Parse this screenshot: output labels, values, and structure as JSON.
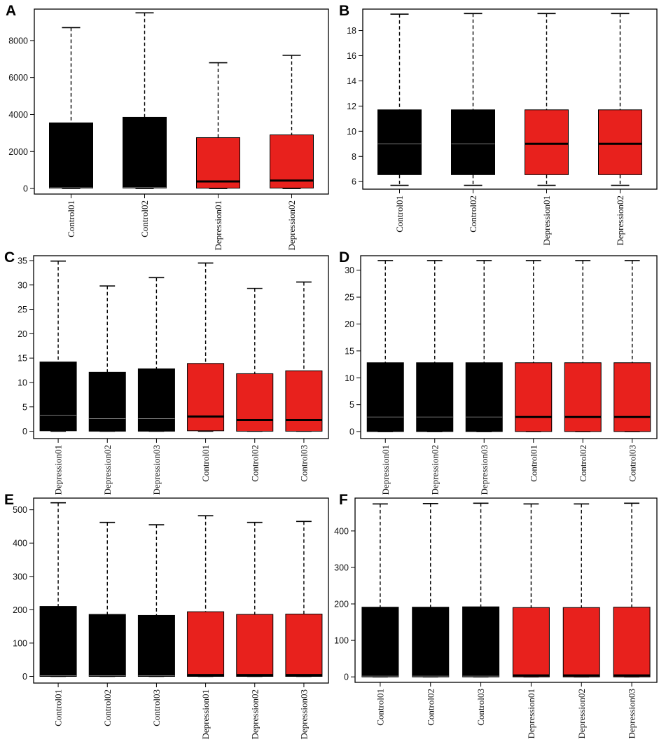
{
  "colors": {
    "control": "#000000",
    "depression": "#e8211d",
    "axis": "#000000",
    "median_on_black": "#777777"
  },
  "chart_data": [
    {
      "panel": "A",
      "type": "box",
      "ylim": [
        -300,
        9700
      ],
      "yticks": [
        0,
        2000,
        4000,
        6000,
        8000
      ],
      "categories": [
        "Control01",
        "Control02",
        "Depression01",
        "Depression02"
      ],
      "boxes": [
        {
          "label": "Control01",
          "group": "control",
          "min": 0,
          "q1": 20,
          "median": 40,
          "q3": 3550,
          "max": 8700
        },
        {
          "label": "Control02",
          "group": "control",
          "min": 0,
          "q1": 25,
          "median": 50,
          "q3": 3850,
          "max": 9500
        },
        {
          "label": "Depression01",
          "group": "depression",
          "min": 0,
          "q1": 20,
          "median": 380,
          "q3": 2750,
          "max": 6800
        },
        {
          "label": "Depression02",
          "group": "depression",
          "min": 0,
          "q1": 25,
          "median": 430,
          "q3": 2900,
          "max": 7200
        }
      ]
    },
    {
      "panel": "B",
      "type": "box",
      "ylim": [
        5.4,
        19.7
      ],
      "yticks": [
        6,
        8,
        10,
        12,
        14,
        16,
        18
      ],
      "categories": [
        "Control01",
        "Control02",
        "Depression01",
        "Depression02"
      ],
      "boxes": [
        {
          "label": "Control01",
          "group": "control",
          "min": 5.7,
          "q1": 6.55,
          "median": 9.0,
          "q3": 11.7,
          "max": 19.3
        },
        {
          "label": "Control02",
          "group": "control",
          "min": 5.7,
          "q1": 6.55,
          "median": 9.0,
          "q3": 11.7,
          "max": 19.35
        },
        {
          "label": "Depression01",
          "group": "depression",
          "min": 5.7,
          "q1": 6.55,
          "median": 9.0,
          "q3": 11.7,
          "max": 19.35
        },
        {
          "label": "Depression02",
          "group": "depression",
          "min": 5.7,
          "q1": 6.55,
          "median": 9.0,
          "q3": 11.7,
          "max": 19.35
        }
      ]
    },
    {
      "panel": "C",
      "type": "box",
      "ylim": [
        -1.5,
        36
      ],
      "yticks": [
        0,
        5,
        10,
        15,
        20,
        25,
        30,
        35
      ],
      "categories": [
        "Depression01",
        "Depression02",
        "Depression03",
        "Control01",
        "Control02",
        "Control03"
      ],
      "boxes": [
        {
          "label": "Depression01",
          "group": "control",
          "min": 0,
          "q1": 0.1,
          "median": 3.2,
          "q3": 14.2,
          "max": 34.9
        },
        {
          "label": "Depression02",
          "group": "control",
          "min": 0,
          "q1": 0,
          "median": 2.6,
          "q3": 12.1,
          "max": 29.8
        },
        {
          "label": "Depression03",
          "group": "control",
          "min": 0,
          "q1": 0,
          "median": 2.6,
          "q3": 12.8,
          "max": 31.5
        },
        {
          "label": "Control01",
          "group": "depression",
          "min": 0,
          "q1": 0.1,
          "median": 3.0,
          "q3": 13.9,
          "max": 34.5
        },
        {
          "label": "Control02",
          "group": "depression",
          "min": 0,
          "q1": 0,
          "median": 2.3,
          "q3": 11.8,
          "max": 29.3
        },
        {
          "label": "Control03",
          "group": "depression",
          "min": 0,
          "q1": 0,
          "median": 2.3,
          "q3": 12.4,
          "max": 30.6
        }
      ]
    },
    {
      "panel": "D",
      "type": "box",
      "ylim": [
        -1.3,
        32.7
      ],
      "yticks": [
        0,
        5,
        10,
        15,
        20,
        25,
        30
      ],
      "categories": [
        "Depression01",
        "Depression02",
        "Depression03",
        "Control01",
        "Control02",
        "Control03"
      ],
      "boxes": [
        {
          "label": "Depression01",
          "group": "control",
          "min": 0,
          "q1": 0,
          "median": 2.7,
          "q3": 12.8,
          "max": 31.8
        },
        {
          "label": "Depression02",
          "group": "control",
          "min": 0,
          "q1": 0,
          "median": 2.7,
          "q3": 12.8,
          "max": 31.8
        },
        {
          "label": "Depression03",
          "group": "control",
          "min": 0,
          "q1": 0,
          "median": 2.7,
          "q3": 12.8,
          "max": 31.8
        },
        {
          "label": "Control01",
          "group": "depression",
          "min": 0,
          "q1": 0,
          "median": 2.7,
          "q3": 12.8,
          "max": 31.8
        },
        {
          "label": "Control02",
          "group": "depression",
          "min": 0,
          "q1": 0,
          "median": 2.7,
          "q3": 12.8,
          "max": 31.8
        },
        {
          "label": "Control03",
          "group": "depression",
          "min": 0,
          "q1": 0,
          "median": 2.7,
          "q3": 12.8,
          "max": 31.8
        }
      ]
    },
    {
      "panel": "E",
      "type": "box",
      "ylim": [
        -20,
        535
      ],
      "yticks": [
        0,
        100,
        200,
        300,
        400,
        500
      ],
      "categories": [
        "Control01",
        "Control02",
        "Control03",
        "Depression01",
        "Depression02",
        "Depression03"
      ],
      "boxes": [
        {
          "label": "Control01",
          "group": "control",
          "min": 0,
          "q1": 0,
          "median": 2,
          "q3": 210,
          "max": 521
        },
        {
          "label": "Control02",
          "group": "control",
          "min": 0,
          "q1": 0,
          "median": 2,
          "q3": 186,
          "max": 462
        },
        {
          "label": "Control03",
          "group": "control",
          "min": 0,
          "q1": 0,
          "median": 2,
          "q3": 183,
          "max": 455
        },
        {
          "label": "Depression01",
          "group": "depression",
          "min": 0,
          "q1": 0,
          "median": 4,
          "q3": 194,
          "max": 482
        },
        {
          "label": "Depression02",
          "group": "depression",
          "min": 0,
          "q1": 0,
          "median": 4,
          "q3": 186,
          "max": 462
        },
        {
          "label": "Depression03",
          "group": "depression",
          "min": 0,
          "q1": 0,
          "median": 4,
          "q3": 187,
          "max": 465
        }
      ]
    },
    {
      "panel": "F",
      "type": "box",
      "ylim": [
        -15,
        490
      ],
      "yticks": [
        0,
        100,
        200,
        300,
        400
      ],
      "categories": [
        "Control01",
        "Control02",
        "Control03",
        "Depression01",
        "Depression02",
        "Depression03"
      ],
      "boxes": [
        {
          "label": "Control01",
          "group": "control",
          "min": 0,
          "q1": 0,
          "median": 2,
          "q3": 191,
          "max": 474
        },
        {
          "label": "Control02",
          "group": "control",
          "min": 0,
          "q1": 0,
          "median": 2,
          "q3": 191,
          "max": 475
        },
        {
          "label": "Control03",
          "group": "control",
          "min": 0,
          "q1": 0,
          "median": 2,
          "q3": 192,
          "max": 476
        },
        {
          "label": "Depression01",
          "group": "depression",
          "min": 0,
          "q1": 0,
          "median": 4,
          "q3": 190,
          "max": 474
        },
        {
          "label": "Depression02",
          "group": "depression",
          "min": 0,
          "q1": 0,
          "median": 4,
          "q3": 190,
          "max": 474
        },
        {
          "label": "Depression03",
          "group": "depression",
          "min": 0,
          "q1": 0,
          "median": 4,
          "q3": 191,
          "max": 476
        }
      ]
    }
  ]
}
